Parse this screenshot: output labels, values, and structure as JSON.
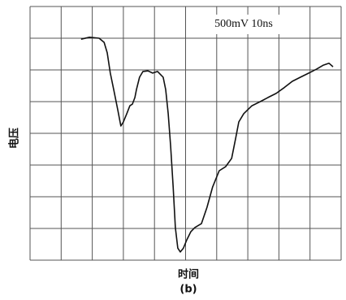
{
  "chart_data": {
    "type": "line",
    "annotation": "500mV 10ns",
    "xlabel": "时间",
    "ylabel": "电压",
    "caption": "(b)",
    "color": "#111111",
    "grid": true,
    "xlim": [
      0,
      10
    ],
    "ylim": [
      0,
      8
    ],
    "xticks": [
      0,
      1,
      2,
      3,
      4,
      5,
      6,
      7,
      8,
      9,
      10
    ],
    "yticks": [
      0,
      1,
      2,
      3,
      4,
      5,
      6,
      7,
      8
    ],
    "x": [
      1.64,
      1.91,
      2.22,
      2.38,
      2.48,
      2.58,
      2.69,
      2.82,
      2.92,
      3.0,
      3.11,
      3.21,
      3.29,
      3.37,
      3.42,
      3.52,
      3.63,
      3.79,
      3.94,
      4.1,
      4.2,
      4.28,
      4.36,
      4.44,
      4.52,
      4.6,
      4.67,
      4.75,
      4.83,
      4.93,
      5.04,
      5.17,
      5.3,
      5.51,
      5.69,
      5.87,
      6.08,
      6.29,
      6.48,
      6.61,
      6.71,
      6.87,
      7.13,
      7.4,
      7.65,
      7.91,
      8.17,
      8.43,
      8.69,
      8.96,
      9.22,
      9.43,
      9.61,
      9.74
    ],
    "values": [
      6.97,
      7.03,
      7.0,
      6.87,
      6.54,
      5.9,
      5.38,
      4.74,
      4.23,
      4.36,
      4.62,
      4.87,
      4.92,
      5.13,
      5.38,
      5.77,
      5.95,
      5.97,
      5.9,
      5.95,
      5.85,
      5.77,
      5.38,
      4.62,
      3.59,
      2.31,
      1.03,
      0.38,
      0.26,
      0.38,
      0.64,
      0.9,
      1.03,
      1.15,
      1.67,
      2.31,
      2.82,
      2.95,
      3.21,
      3.85,
      4.36,
      4.62,
      4.87,
      5.0,
      5.13,
      5.26,
      5.44,
      5.64,
      5.77,
      5.9,
      6.03,
      6.15,
      6.21,
      6.1
    ]
  }
}
